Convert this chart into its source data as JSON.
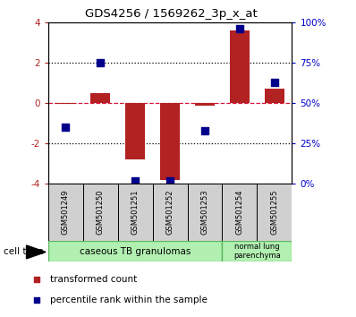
{
  "title": "GDS4256 / 1569262_3p_x_at",
  "samples": [
    "GSM501249",
    "GSM501250",
    "GSM501251",
    "GSM501252",
    "GSM501253",
    "GSM501254",
    "GSM501255"
  ],
  "transformed_count": [
    -0.05,
    0.5,
    -2.8,
    -3.8,
    -0.15,
    3.6,
    0.7
  ],
  "percentile_rank": [
    35,
    75,
    2,
    2,
    33,
    96,
    63
  ],
  "ylim_left": [
    -4,
    4
  ],
  "ylim_right": [
    0,
    100
  ],
  "yticks_left": [
    -4,
    -2,
    0,
    2,
    4
  ],
  "ytick_labels_left": [
    "-4",
    "-2",
    "0",
    "2",
    "4"
  ],
  "yticks_right": [
    0,
    25,
    50,
    75,
    100
  ],
  "ytick_labels_right": [
    "0%",
    "25%",
    "50%",
    "75%",
    "100%"
  ],
  "bar_color": "#b22222",
  "dot_color": "#00008b",
  "hline_color": "#dc143c",
  "group1_label": "caseous TB granulomas",
  "group2_label": "normal lung\nparenchyma",
  "group1_color": "#b2f0b2",
  "group2_color": "#b2f0b2",
  "group_border_color": "#5cb85c",
  "cell_type_label": "cell type",
  "legend_red_label": "transformed count",
  "legend_blue_label": "percentile rank within the sample",
  "bar_width": 0.55,
  "dot_size": 28,
  "sample_box_color": "#d0d0d0"
}
